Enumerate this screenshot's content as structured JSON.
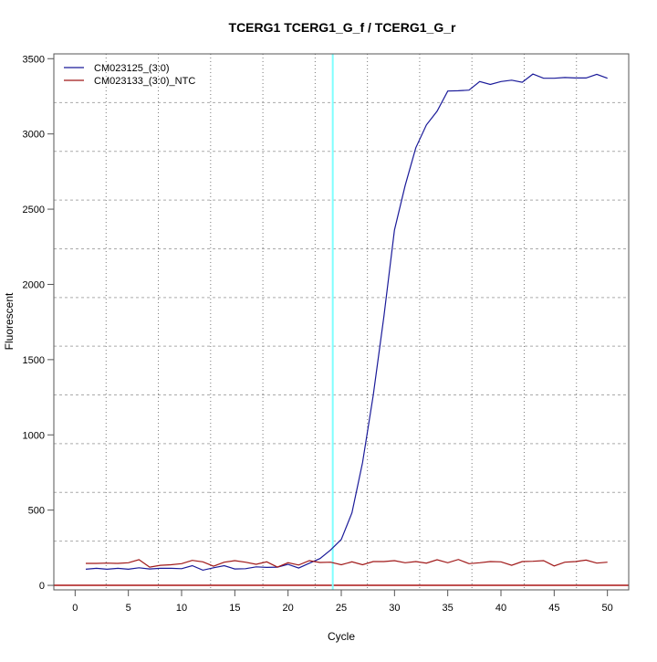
{
  "chart_data": {
    "type": "line",
    "title": "TCERG1  TCERG1_G_f / TCERG1_G_r",
    "xlabel": "Cycle",
    "ylabel": "Fluorescent",
    "xlim": [
      -2,
      52
    ],
    "ylim": [
      -30,
      3532
    ],
    "x_ticks": [
      0,
      5,
      10,
      15,
      20,
      25,
      30,
      35,
      40,
      45,
      50
    ],
    "y_ticks": [
      0,
      500,
      1000,
      1500,
      2000,
      2500,
      3000,
      3500
    ],
    "grid": true,
    "legend_position": "top-left",
    "threshold_cycle": 24.2,
    "baseline_value": 0,
    "colors": {
      "threshold": "#7fffff",
      "baseline": "#c05050"
    },
    "x": [
      1,
      2,
      3,
      4,
      5,
      6,
      7,
      8,
      9,
      10,
      11,
      12,
      13,
      14,
      15,
      16,
      17,
      18,
      19,
      20,
      21,
      22,
      23,
      24,
      25,
      26,
      27,
      28,
      29,
      30,
      31,
      32,
      33,
      34,
      35,
      36,
      37,
      38,
      39,
      40,
      41,
      42,
      43,
      44,
      45,
      46,
      47,
      48,
      49,
      50
    ],
    "series": [
      {
        "name": "CM023125_(3:0)",
        "color": "#1a1a99",
        "values": [
          107,
          113,
          107,
          113,
          107,
          117,
          109,
          113,
          113,
          111,
          131,
          101,
          117,
          131,
          109,
          111,
          123,
          119,
          121,
          139,
          115,
          147,
          178,
          235,
          305,
          482,
          815,
          1262,
          1786,
          2362,
          2657,
          2908,
          3060,
          3151,
          3285,
          3287,
          3291,
          3348,
          3329,
          3348,
          3357,
          3343,
          3398,
          3370,
          3370,
          3375,
          3372,
          3372,
          3396,
          3370
        ]
      },
      {
        "name": "CM023133_(3:0)_NTC",
        "color": "#a01818",
        "values": [
          146,
          146,
          148,
          146,
          150,
          171,
          121,
          133,
          137,
          144,
          166,
          156,
          127,
          154,
          164,
          154,
          140,
          156,
          121,
          150,
          135,
          164,
          152,
          154,
          137,
          156,
          137,
          158,
          158,
          164,
          150,
          158,
          148,
          170,
          150,
          172,
          144,
          150,
          158,
          156,
          133,
          158,
          160,
          164,
          129,
          154,
          158,
          168,
          148,
          154
        ]
      }
    ]
  }
}
